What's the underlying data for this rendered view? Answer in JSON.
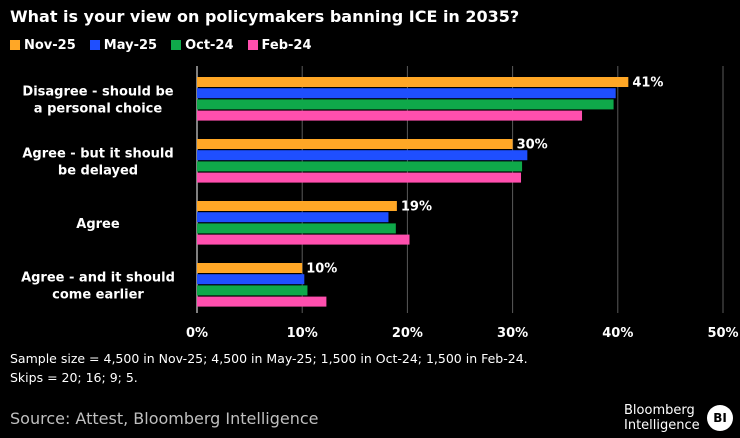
{
  "title": "What is your view on policymakers banning ICE in 2035?",
  "chart_data": {
    "type": "bar",
    "orientation": "horizontal",
    "title": "What is your view on policymakers banning ICE in 2035?",
    "categories": [
      [
        "Disagree - should be",
        "a personal choice"
      ],
      [
        "Agree - but it should",
        "be delayed"
      ],
      [
        "Agree"
      ],
      [
        "Agree - and it should",
        "come earlier"
      ]
    ],
    "series": [
      {
        "name": "Nov-25",
        "color": "#ffa726",
        "values": [
          41,
          30,
          19,
          10
        ],
        "labeled": true
      },
      {
        "name": "May-25",
        "color": "#1f4fff",
        "values": [
          39.8,
          31.4,
          18.2,
          10.2
        ],
        "labeled": false
      },
      {
        "name": "Oct-24",
        "color": "#0fa84a",
        "values": [
          39.6,
          30.9,
          18.9,
          10.5
        ],
        "labeled": false
      },
      {
        "name": "Feb-24",
        "color": "#ff4fae",
        "values": [
          36.6,
          30.8,
          20.2,
          12.3
        ],
        "labeled": false
      }
    ],
    "data_labels": [
      "41%",
      "30%",
      "19%",
      "10%"
    ],
    "xlim": [
      0,
      50
    ],
    "xticks": [
      0,
      10,
      20,
      30,
      40,
      50
    ],
    "xtick_labels": [
      "0%",
      "10%",
      "20%",
      "30%",
      "40%",
      "50%"
    ],
    "xlabel": "",
    "ylabel": "",
    "grid": true,
    "legend_position": "top-left"
  },
  "footnotes": [
    "Sample size = 4,500 in Nov-25; 4,500 in May-25; 1,500 in Oct-24; 1,500 in Feb-24.",
    "Skips = 20; 16; 9; 5."
  ],
  "source": "Source: Attest, Bloomberg Intelligence",
  "brand": {
    "line1": "Bloomberg",
    "line2": "Intelligence",
    "badge": "BI"
  }
}
